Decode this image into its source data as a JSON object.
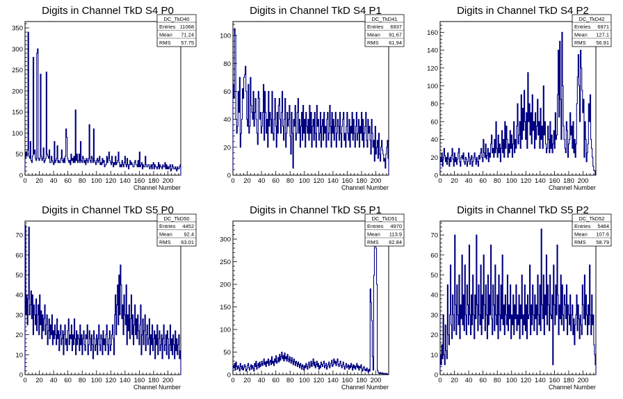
{
  "chart_data": [
    {
      "type": "line",
      "title": "Digits in Channel TkD S4 P0",
      "xlabel": "Channel Number",
      "xlim": [
        0,
        218
      ],
      "ylim": [
        0,
        365
      ],
      "xticks": [
        0,
        20,
        40,
        60,
        80,
        100,
        120,
        140,
        160,
        180,
        200
      ],
      "yticks": [
        0,
        50,
        100,
        150,
        200,
        250,
        300,
        350
      ],
      "stats": {
        "name": "DC_TkD40",
        "entries": "11068",
        "mean": "71.24",
        "rms": "57.75"
      },
      "y": [
        40,
        55,
        45,
        60,
        340,
        45,
        40,
        80,
        35,
        30,
        45,
        280,
        50,
        60,
        40,
        35,
        290,
        300,
        40,
        35,
        40,
        240,
        45,
        35,
        40,
        65,
        30,
        35,
        40,
        245,
        50,
        45,
        40,
        60,
        30,
        30,
        45,
        35,
        30,
        25,
        80,
        30,
        35,
        40,
        70,
        30,
        35,
        30,
        30,
        40,
        60,
        35,
        30,
        40,
        30,
        45,
        110,
        90,
        40,
        35,
        30,
        35,
        25,
        50,
        35,
        40,
        30,
        45,
        30,
        155,
        35,
        50,
        30,
        35,
        50,
        30,
        80,
        35,
        30,
        45,
        40,
        30,
        35,
        25,
        40,
        35,
        30,
        40,
        120,
        35,
        30,
        45,
        40,
        30,
        110,
        35,
        30,
        25,
        35,
        40,
        30,
        35,
        45,
        25,
        30,
        25,
        40,
        30,
        35,
        20,
        25,
        25,
        45,
        30,
        40,
        55,
        35,
        30,
        25,
        45,
        30,
        20,
        30,
        25,
        45,
        25,
        30,
        35,
        55,
        30,
        20,
        25,
        20,
        35,
        25,
        20,
        30,
        45,
        25,
        20,
        40,
        25,
        15,
        25,
        35,
        25,
        30,
        25,
        20,
        20,
        30,
        35,
        25,
        25,
        20,
        35,
        20,
        55,
        20,
        25,
        30,
        15,
        25,
        20,
        20,
        45,
        25,
        20,
        20,
        25,
        25,
        15,
        20,
        25,
        15,
        25,
        30,
        15,
        25,
        20,
        20,
        15,
        20,
        30,
        15,
        25,
        20,
        20,
        15,
        25,
        20,
        20,
        30,
        15,
        25,
        15,
        20,
        15,
        20,
        25,
        10,
        15,
        25,
        20,
        15,
        15,
        20,
        15,
        10,
        20,
        15,
        15,
        20,
        25
      ]
    },
    {
      "type": "line",
      "title": "Digits in Channel TkD S4 P1",
      "xlabel": "Channel Number",
      "xlim": [
        0,
        218
      ],
      "ylim": [
        0,
        110
      ],
      "xticks": [
        0,
        20,
        40,
        60,
        80,
        100,
        120,
        140,
        160,
        180,
        200
      ],
      "yticks": [
        0,
        20,
        40,
        60,
        80,
        100
      ],
      "stats": {
        "name": "DC_TkD41",
        "entries": "6937",
        "mean": "91.67",
        "rms": "61.94"
      },
      "y": [
        65,
        55,
        105,
        100,
        40,
        30,
        35,
        60,
        45,
        70,
        20,
        30,
        40,
        62,
        55,
        70,
        72,
        78,
        60,
        40,
        35,
        65,
        30,
        35,
        70,
        50,
        45,
        40,
        60,
        35,
        45,
        55,
        40,
        30,
        22,
        60,
        55,
        40,
        45,
        30,
        35,
        45,
        65,
        25,
        60,
        45,
        30,
        40,
        20,
        60,
        35,
        45,
        40,
        30,
        60,
        30,
        25,
        40,
        55,
        35,
        20,
        45,
        30,
        50,
        55,
        40,
        30,
        45,
        60,
        35,
        25,
        40,
        55,
        20,
        30,
        45,
        35,
        40,
        50,
        28,
        15,
        45,
        30,
        5,
        40,
        35,
        50,
        25,
        30,
        45,
        55,
        30,
        40,
        20,
        35,
        45,
        25,
        50,
        30,
        40,
        20,
        45,
        35,
        30,
        40,
        25,
        50,
        30,
        45,
        20,
        35,
        40,
        25,
        45,
        30,
        20,
        50,
        35,
        40,
        25,
        30,
        45,
        20,
        35,
        40,
        25,
        45,
        30,
        35,
        20,
        40,
        45,
        25,
        30,
        50,
        35,
        20,
        45,
        30,
        40,
        25,
        35,
        45,
        20,
        30,
        40,
        35,
        25,
        45,
        30,
        20,
        35,
        40,
        45,
        25,
        30,
        20,
        35,
        45,
        30,
        25,
        40,
        20,
        35,
        30,
        45,
        25,
        40,
        30,
        20,
        35,
        45,
        25,
        30,
        40,
        20,
        35,
        30,
        45,
        25,
        40,
        20,
        30,
        35,
        45,
        25,
        20,
        40,
        30,
        35,
        25,
        15,
        40,
        30,
        20,
        25,
        10,
        35,
        15,
        20,
        25,
        12,
        30,
        15,
        10,
        20,
        25,
        18,
        15,
        10,
        12,
        5,
        15,
        20,
        25,
        12
      ]
    },
    {
      "type": "line",
      "title": "Digits in Channel TkD S4 P2",
      "xlabel": "Channel Number",
      "xlim": [
        0,
        218
      ],
      "ylim": [
        0,
        172
      ],
      "xticks": [
        0,
        20,
        40,
        60,
        80,
        100,
        120,
        140,
        160,
        180,
        200
      ],
      "yticks": [
        0,
        20,
        40,
        60,
        80,
        100,
        120,
        140,
        160
      ],
      "stats": {
        "name": "DC_TkD42",
        "entries": "6971",
        "mean": "127.1",
        "rms": "56.91"
      },
      "y": [
        20,
        15,
        25,
        10,
        18,
        30,
        22,
        15,
        20,
        12,
        25,
        18,
        10,
        20,
        15,
        22,
        30,
        18,
        10,
        25,
        15,
        20,
        12,
        18,
        25,
        30,
        15,
        10,
        20,
        22,
        18,
        25,
        15,
        12,
        20,
        18,
        10,
        15,
        25,
        20,
        12,
        18,
        22,
        10,
        15,
        20,
        25,
        18,
        12,
        20,
        15,
        10,
        22,
        18,
        25,
        30,
        20,
        15,
        40,
        25,
        20,
        35,
        18,
        22,
        30,
        15,
        25,
        20,
        35,
        45,
        25,
        30,
        20,
        40,
        25,
        60,
        30,
        20,
        45,
        25,
        35,
        15,
        30,
        50,
        25,
        40,
        20,
        60,
        30,
        55,
        40,
        20,
        35,
        25,
        50,
        30,
        45,
        20,
        35,
        60,
        25,
        40,
        30,
        55,
        80,
        35,
        45,
        60,
        30,
        90,
        40,
        75,
        50,
        95,
        60,
        40,
        70,
        30,
        115,
        60,
        80,
        45,
        70,
        35,
        90,
        50,
        60,
        30,
        70,
        40,
        55,
        85,
        45,
        60,
        30,
        75,
        40,
        55,
        30,
        100,
        45,
        60,
        35,
        25,
        30,
        55,
        40,
        25,
        60,
        30,
        45,
        25,
        35,
        50,
        30,
        70,
        40,
        45,
        90,
        140,
        65,
        150,
        85,
        40,
        160,
        100,
        55,
        40,
        30,
        25,
        60,
        50,
        20,
        35,
        40,
        70,
        45,
        55,
        30,
        60,
        25,
        40,
        20,
        35,
        80,
        110,
        135,
        100,
        60,
        140,
        120,
        95,
        70,
        85,
        20,
        60,
        40,
        15,
        25,
        35,
        80,
        60,
        90,
        40,
        30,
        20,
        10,
        5,
        5,
        0
      ]
    },
    {
      "type": "line",
      "title": "Digits in Channel TkD S5 P0",
      "xlabel": "Channel Number",
      "xlim": [
        0,
        218
      ],
      "ylim": [
        0,
        77
      ],
      "xticks": [
        0,
        20,
        40,
        60,
        80,
        100,
        120,
        140,
        160,
        180,
        200
      ],
      "yticks": [
        0,
        10,
        20,
        30,
        40,
        50,
        60,
        70
      ],
      "stats": {
        "name": "DC_TkD50",
        "entries": "4452",
        "mean": "92.4",
        "rms": "63.01"
      },
      "y": [
        75,
        30,
        40,
        25,
        38,
        74,
        30,
        35,
        42,
        28,
        40,
        20,
        35,
        30,
        25,
        38,
        22,
        30,
        35,
        20,
        40,
        25,
        32,
        18,
        30,
        22,
        28,
        35,
        20,
        25,
        30,
        15,
        22,
        28,
        18,
        25,
        20,
        30,
        15,
        22,
        18,
        25,
        20,
        15,
        28,
        18,
        22,
        12,
        20,
        25,
        15,
        18,
        22,
        10,
        20,
        25,
        15,
        18,
        12,
        22,
        28,
        15,
        20,
        18,
        25,
        12,
        20,
        15,
        28,
        18,
        10,
        22,
        15,
        20,
        18,
        12,
        25,
        15,
        20,
        10,
        18,
        22,
        15,
        12,
        20,
        18,
        25,
        10,
        15,
        22,
        18,
        12,
        20,
        15,
        8,
        22,
        18,
        12,
        15,
        20,
        10,
        18,
        25,
        15,
        12,
        20,
        18,
        10,
        22,
        15,
        18,
        12,
        20,
        25,
        15,
        10,
        18,
        22,
        12,
        15,
        20,
        25,
        18,
        10,
        30,
        40,
        20,
        35,
        45,
        25,
        50,
        30,
        55,
        45,
        28,
        35,
        20,
        40,
        30,
        25,
        45,
        15,
        30,
        22,
        35,
        18,
        28,
        40,
        20,
        30,
        15,
        25,
        35,
        20,
        28,
        18,
        30,
        22,
        15,
        25,
        35,
        10,
        20,
        28,
        15,
        22,
        30,
        12,
        20,
        25,
        15,
        18,
        28,
        10,
        20,
        15,
        25,
        12,
        18,
        22,
        8,
        20,
        15,
        25,
        10,
        18,
        22,
        12,
        15,
        20,
        8,
        18,
        25,
        12,
        15,
        20,
        10,
        22,
        18,
        8,
        15,
        25,
        12,
        18,
        10,
        20,
        15,
        8,
        22,
        12,
        18,
        10,
        15,
        20,
        8,
        12
      ]
    },
    {
      "type": "line",
      "title": "Digits in Channel TkD S5 P1",
      "xlabel": "Channel Number",
      "xlim": [
        0,
        218
      ],
      "ylim": [
        0,
        340
      ],
      "xticks": [
        0,
        20,
        40,
        60,
        80,
        100,
        120,
        140,
        160,
        180,
        200
      ],
      "yticks": [
        0,
        50,
        100,
        150,
        200,
        250,
        300
      ],
      "stats": {
        "name": "DC_TkD51",
        "entries": "4970",
        "mean": "113.9",
        "rms": "62.84"
      },
      "y": [
        20,
        15,
        25,
        10,
        28,
        18,
        12,
        20,
        15,
        8,
        25,
        18,
        12,
        20,
        10,
        15,
        22,
        18,
        8,
        12,
        20,
        25,
        15,
        10,
        18,
        22,
        12,
        20,
        15,
        8,
        25,
        18,
        30,
        12,
        20,
        25,
        15,
        28,
        18,
        22,
        30,
        20,
        25,
        35,
        22,
        28,
        18,
        30,
        25,
        35,
        20,
        28,
        32,
        22,
        40,
        25,
        30,
        20,
        35,
        28,
        42,
        25,
        30,
        38,
        28,
        45,
        32,
        40,
        50,
        35,
        42,
        30,
        48,
        35,
        40,
        30,
        45,
        35,
        28,
        40,
        32,
        25,
        38,
        30,
        22,
        35,
        28,
        20,
        30,
        25,
        18,
        28,
        22,
        15,
        25,
        20,
        12,
        22,
        18,
        10,
        20,
        15,
        25,
        18,
        12,
        22,
        28,
        15,
        20,
        30,
        18,
        25,
        35,
        20,
        28,
        15,
        22,
        30,
        18,
        25,
        12,
        20,
        15,
        28,
        22,
        18,
        25,
        30,
        15,
        20,
        25,
        12,
        18,
        22,
        28,
        15,
        20,
        25,
        32,
        18,
        22,
        35,
        25,
        30,
        20,
        28,
        35,
        22,
        18,
        25,
        30,
        20,
        15,
        22,
        28,
        18,
        12,
        20,
        25,
        15,
        18,
        22,
        12,
        20,
        15,
        25,
        18,
        10,
        22,
        15,
        20,
        12,
        18,
        25,
        15,
        20,
        10,
        18,
        15,
        22,
        12,
        8,
        15,
        18,
        10,
        12,
        8,
        15,
        10,
        5,
        12,
        8,
        190,
        160,
        120,
        40,
        10,
        220,
        300,
        330,
        280,
        200,
        10,
        5,
        3,
        2,
        5,
        3,
        2,
        4,
        2,
        1,
        3,
        2,
        1,
        2,
        1,
        0
      ]
    },
    {
      "type": "line",
      "title": "Digits in Channel TkD S5 P2",
      "xlabel": "Channel Number",
      "xlim": [
        0,
        218
      ],
      "ylim": [
        0,
        77
      ],
      "xticks": [
        0,
        20,
        40,
        60,
        80,
        100,
        120,
        140,
        160,
        180,
        200
      ],
      "yticks": [
        0,
        10,
        20,
        30,
        40,
        50,
        60,
        70
      ],
      "stats": {
        "name": "DC_TkD52",
        "entries": "5484",
        "mean": "107.6",
        "rms": "58.79"
      },
      "y": [
        10,
        5,
        15,
        8,
        30,
        10,
        5,
        25,
        12,
        8,
        45,
        20,
        15,
        30,
        55,
        25,
        18,
        40,
        30,
        22,
        70,
        35,
        20,
        45,
        30,
        25,
        50,
        18,
        35,
        28,
        60,
        25,
        40,
        22,
        55,
        30,
        20,
        45,
        35,
        25,
        65,
        30,
        20,
        40,
        25,
        50,
        30,
        18,
        40,
        28,
        70,
        35,
        22,
        45,
        30,
        25,
        55,
        20,
        40,
        28,
        60,
        35,
        22,
        45,
        30,
        18,
        50,
        25,
        40,
        30,
        65,
        28,
        20,
        45,
        35,
        22,
        55,
        30,
        25,
        40,
        18,
        50,
        30,
        22,
        45,
        28,
        60,
        25,
        35,
        20,
        40,
        30,
        25,
        50,
        22,
        35,
        28,
        45,
        18,
        30,
        25,
        40,
        20,
        35,
        28,
        45,
        22,
        30,
        25,
        40,
        18,
        35,
        28,
        50,
        20,
        30,
        25,
        45,
        22,
        35,
        18,
        40,
        28,
        30,
        55,
        20,
        35,
        25,
        45,
        30,
        22,
        40,
        28,
        35,
        20,
        50,
        30,
        25,
        45,
        22,
        73,
        35,
        28,
        50,
        20,
        40,
        30,
        60,
        25,
        45,
        35,
        22,
        50,
        30,
        28,
        40,
        5,
        55,
        35,
        25,
        45,
        30,
        65,
        40,
        20,
        35,
        28,
        50,
        25,
        45,
        30,
        22,
        40,
        35,
        28,
        45,
        20,
        35,
        30,
        25,
        40,
        22,
        30,
        35,
        20,
        28,
        15,
        25,
        30,
        40,
        22,
        35,
        28,
        18,
        30,
        25,
        20,
        45,
        35,
        28,
        50,
        25,
        40,
        30,
        20,
        35,
        25,
        55,
        30,
        20,
        40,
        25,
        30,
        15,
        10,
        5
      ]
    }
  ]
}
